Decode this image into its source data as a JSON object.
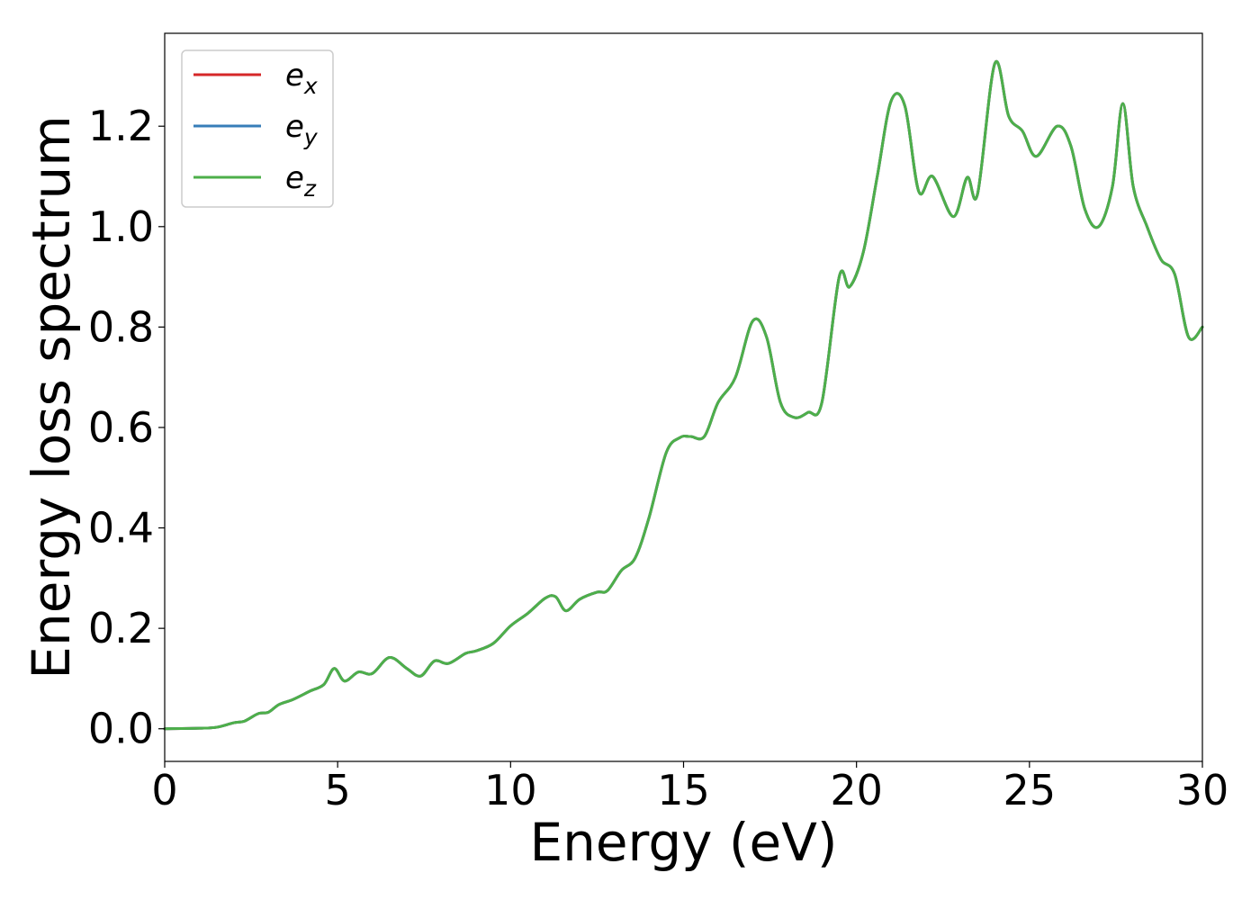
{
  "chart_data": {
    "type": "line",
    "xlabel": "Energy (eV)",
    "ylabel": "Energy loss spectrum",
    "xlim": [
      0,
      30
    ],
    "ylim": [
      -0.065,
      1.385
    ],
    "xticks": [
      0,
      5,
      10,
      15,
      20,
      25,
      30
    ],
    "yticks": [
      0.0,
      0.2,
      0.4,
      0.6,
      0.8,
      1.0,
      1.2
    ],
    "xtick_labels": [
      "0",
      "5",
      "10",
      "15",
      "20",
      "25",
      "30"
    ],
    "ytick_labels": [
      "0.0",
      "0.2",
      "0.4",
      "0.6",
      "0.8",
      "1.0",
      "1.2"
    ],
    "grid": false,
    "legend_position": "top-left",
    "x": [
      0,
      1,
      1.5,
      2,
      2.3,
      2.7,
      3.0,
      3.3,
      3.7,
      4.2,
      4.6,
      4.9,
      5.2,
      5.6,
      6.0,
      6.5,
      7.0,
      7.4,
      7.8,
      8.2,
      8.7,
      9.0,
      9.5,
      10.0,
      10.5,
      11.0,
      11.3,
      11.6,
      12.0,
      12.5,
      12.8,
      13.2,
      13.6,
      14.0,
      14.5,
      14.9,
      15.2,
      15.6,
      16.0,
      16.5,
      17.0,
      17.4,
      17.8,
      18.2,
      18.6,
      19.0,
      19.5,
      19.8,
      20.2,
      20.6,
      21.0,
      21.4,
      21.8,
      22.2,
      22.8,
      23.2,
      23.5,
      24.0,
      24.4,
      24.8,
      25.2,
      25.8,
      26.2,
      26.6,
      27.0,
      27.4,
      27.7,
      28.0,
      28.4,
      28.8,
      29.2,
      29.6,
      30.0
    ],
    "series": [
      {
        "name": "e_x",
        "color": "#d62728",
        "values": [
          0,
          0.001,
          0.003,
          0.012,
          0.015,
          0.03,
          0.033,
          0.048,
          0.058,
          0.075,
          0.088,
          0.12,
          0.095,
          0.113,
          0.11,
          0.142,
          0.12,
          0.105,
          0.135,
          0.13,
          0.15,
          0.155,
          0.17,
          0.205,
          0.23,
          0.26,
          0.263,
          0.235,
          0.258,
          0.272,
          0.275,
          0.315,
          0.34,
          0.42,
          0.55,
          0.58,
          0.582,
          0.582,
          0.65,
          0.7,
          0.812,
          0.78,
          0.65,
          0.62,
          0.63,
          0.65,
          0.9,
          0.88,
          0.95,
          1.1,
          1.25,
          1.24,
          1.07,
          1.1,
          1.02,
          1.098,
          1.065,
          1.325,
          1.22,
          1.19,
          1.14,
          1.2,
          1.16,
          1.035,
          1.0,
          1.08,
          1.245,
          1.08,
          1.0,
          0.935,
          0.905,
          0.78,
          0.8
        ]
      },
      {
        "name": "e_y",
        "color": "#377eb8",
        "values": [
          0,
          0.001,
          0.003,
          0.012,
          0.015,
          0.03,
          0.033,
          0.048,
          0.058,
          0.075,
          0.088,
          0.12,
          0.095,
          0.113,
          0.11,
          0.142,
          0.12,
          0.105,
          0.135,
          0.13,
          0.15,
          0.155,
          0.17,
          0.205,
          0.23,
          0.26,
          0.263,
          0.235,
          0.258,
          0.272,
          0.275,
          0.315,
          0.34,
          0.42,
          0.55,
          0.58,
          0.582,
          0.582,
          0.65,
          0.7,
          0.812,
          0.78,
          0.65,
          0.62,
          0.63,
          0.65,
          0.9,
          0.88,
          0.95,
          1.1,
          1.25,
          1.24,
          1.07,
          1.1,
          1.02,
          1.098,
          1.065,
          1.325,
          1.22,
          1.19,
          1.14,
          1.2,
          1.16,
          1.035,
          1.0,
          1.08,
          1.245,
          1.08,
          1.0,
          0.935,
          0.905,
          0.78,
          0.8
        ]
      },
      {
        "name": "e_z",
        "color": "#4daf4a",
        "values": [
          0,
          0.001,
          0.003,
          0.012,
          0.015,
          0.03,
          0.033,
          0.048,
          0.058,
          0.075,
          0.088,
          0.12,
          0.095,
          0.113,
          0.11,
          0.142,
          0.12,
          0.105,
          0.135,
          0.13,
          0.15,
          0.155,
          0.17,
          0.205,
          0.23,
          0.26,
          0.263,
          0.235,
          0.258,
          0.272,
          0.275,
          0.315,
          0.34,
          0.42,
          0.55,
          0.58,
          0.582,
          0.582,
          0.65,
          0.7,
          0.812,
          0.78,
          0.65,
          0.62,
          0.63,
          0.65,
          0.9,
          0.88,
          0.95,
          1.1,
          1.25,
          1.24,
          1.07,
          1.1,
          1.02,
          1.098,
          1.065,
          1.325,
          1.22,
          1.19,
          1.14,
          1.2,
          1.16,
          1.035,
          1.0,
          1.08,
          1.245,
          1.08,
          1.0,
          0.935,
          0.905,
          0.78,
          0.8
        ]
      }
    ],
    "legend": [
      {
        "base": "e",
        "sub": "x"
      },
      {
        "base": "e",
        "sub": "y"
      },
      {
        "base": "e",
        "sub": "z"
      }
    ]
  }
}
